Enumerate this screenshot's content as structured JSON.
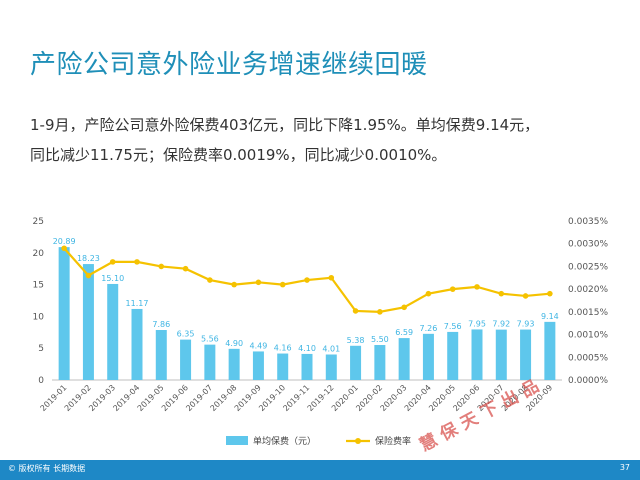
{
  "title": "产险公司意外险业务增速继续回暖",
  "description": {
    "line1": "1-9月，产险公司意外险保费403亿元，同比下降1.95%。单均保费9.14元，",
    "line2": "同比减少11.75元；保险费率0.0019%，同比减少0.0010%。"
  },
  "watermark": "慧保天下出品",
  "footer": {
    "copyright": "© 版权所有 长期数据",
    "page_number": "37"
  },
  "colors": {
    "bar": "#5ec7ec",
    "line": "#f5c200",
    "title": "#1f8fb8",
    "footer": "#1e88c6"
  },
  "chart_data": {
    "type": "bar",
    "categories": [
      "2019-01",
      "2019-02",
      "2019-03",
      "2019-04",
      "2019-05",
      "2019-06",
      "2019-07",
      "2019-08",
      "2019-09",
      "2019-10",
      "2019-11",
      "2019-12",
      "2020-01",
      "2020-02",
      "2020-03",
      "2020-04",
      "2020-05",
      "2020-06",
      "2020-07",
      "2020-08",
      "2020-09"
    ],
    "series": [
      {
        "name": "单均保费（元）",
        "type": "bar",
        "axis": "left",
        "values": [
          20.89,
          18.23,
          15.1,
          11.17,
          7.86,
          6.35,
          5.56,
          4.9,
          4.49,
          4.16,
          4.1,
          4.01,
          5.38,
          5.5,
          6.59,
          7.26,
          7.56,
          7.95,
          7.92,
          7.93,
          9.14
        ],
        "labels": [
          "20.89",
          "18.23",
          "15.10",
          "11.17",
          "7.86",
          "6.35",
          "5.56",
          "4.90",
          "4.49",
          "4.16",
          "4.10",
          "4.01",
          "5.38",
          "5.50",
          "6.59",
          "7.26",
          "7.56",
          "7.95",
          "7.92",
          "7.93",
          "9.14"
        ]
      },
      {
        "name": "保险费率",
        "type": "line",
        "axis": "right",
        "values": [
          0.0029,
          0.0023,
          0.0026,
          0.0026,
          0.0025,
          0.00245,
          0.0022,
          0.0021,
          0.00215,
          0.0021,
          0.0022,
          0.00225,
          0.00152,
          0.0015,
          0.0016,
          0.0019,
          0.002,
          0.00205,
          0.0019,
          0.00185,
          0.0019
        ]
      }
    ],
    "y_left": {
      "min": 0,
      "max": 25,
      "ticks": [
        "0",
        "5",
        "10",
        "15",
        "20",
        "25"
      ]
    },
    "y_right": {
      "min": 0,
      "max": 0.0035,
      "ticks": [
        "0.0000%",
        "0.0005%",
        "0.0010%",
        "0.0015%",
        "0.0020%",
        "0.0025%",
        "0.0030%",
        "0.0035%"
      ]
    },
    "legend_position": "bottom",
    "grid": false
  }
}
